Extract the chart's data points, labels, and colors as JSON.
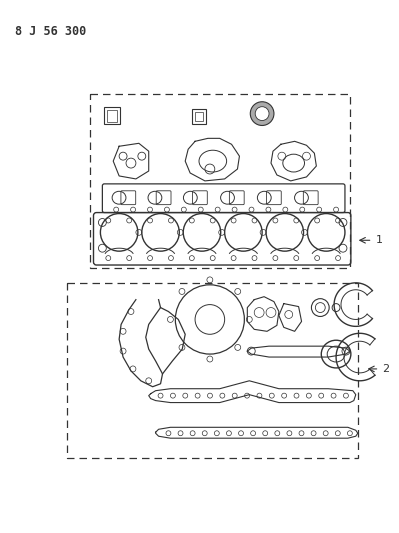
{
  "title": "8 J 56 300",
  "bg_color": "#ffffff",
  "line_color": "#333333",
  "label1": "1",
  "label2": "2"
}
